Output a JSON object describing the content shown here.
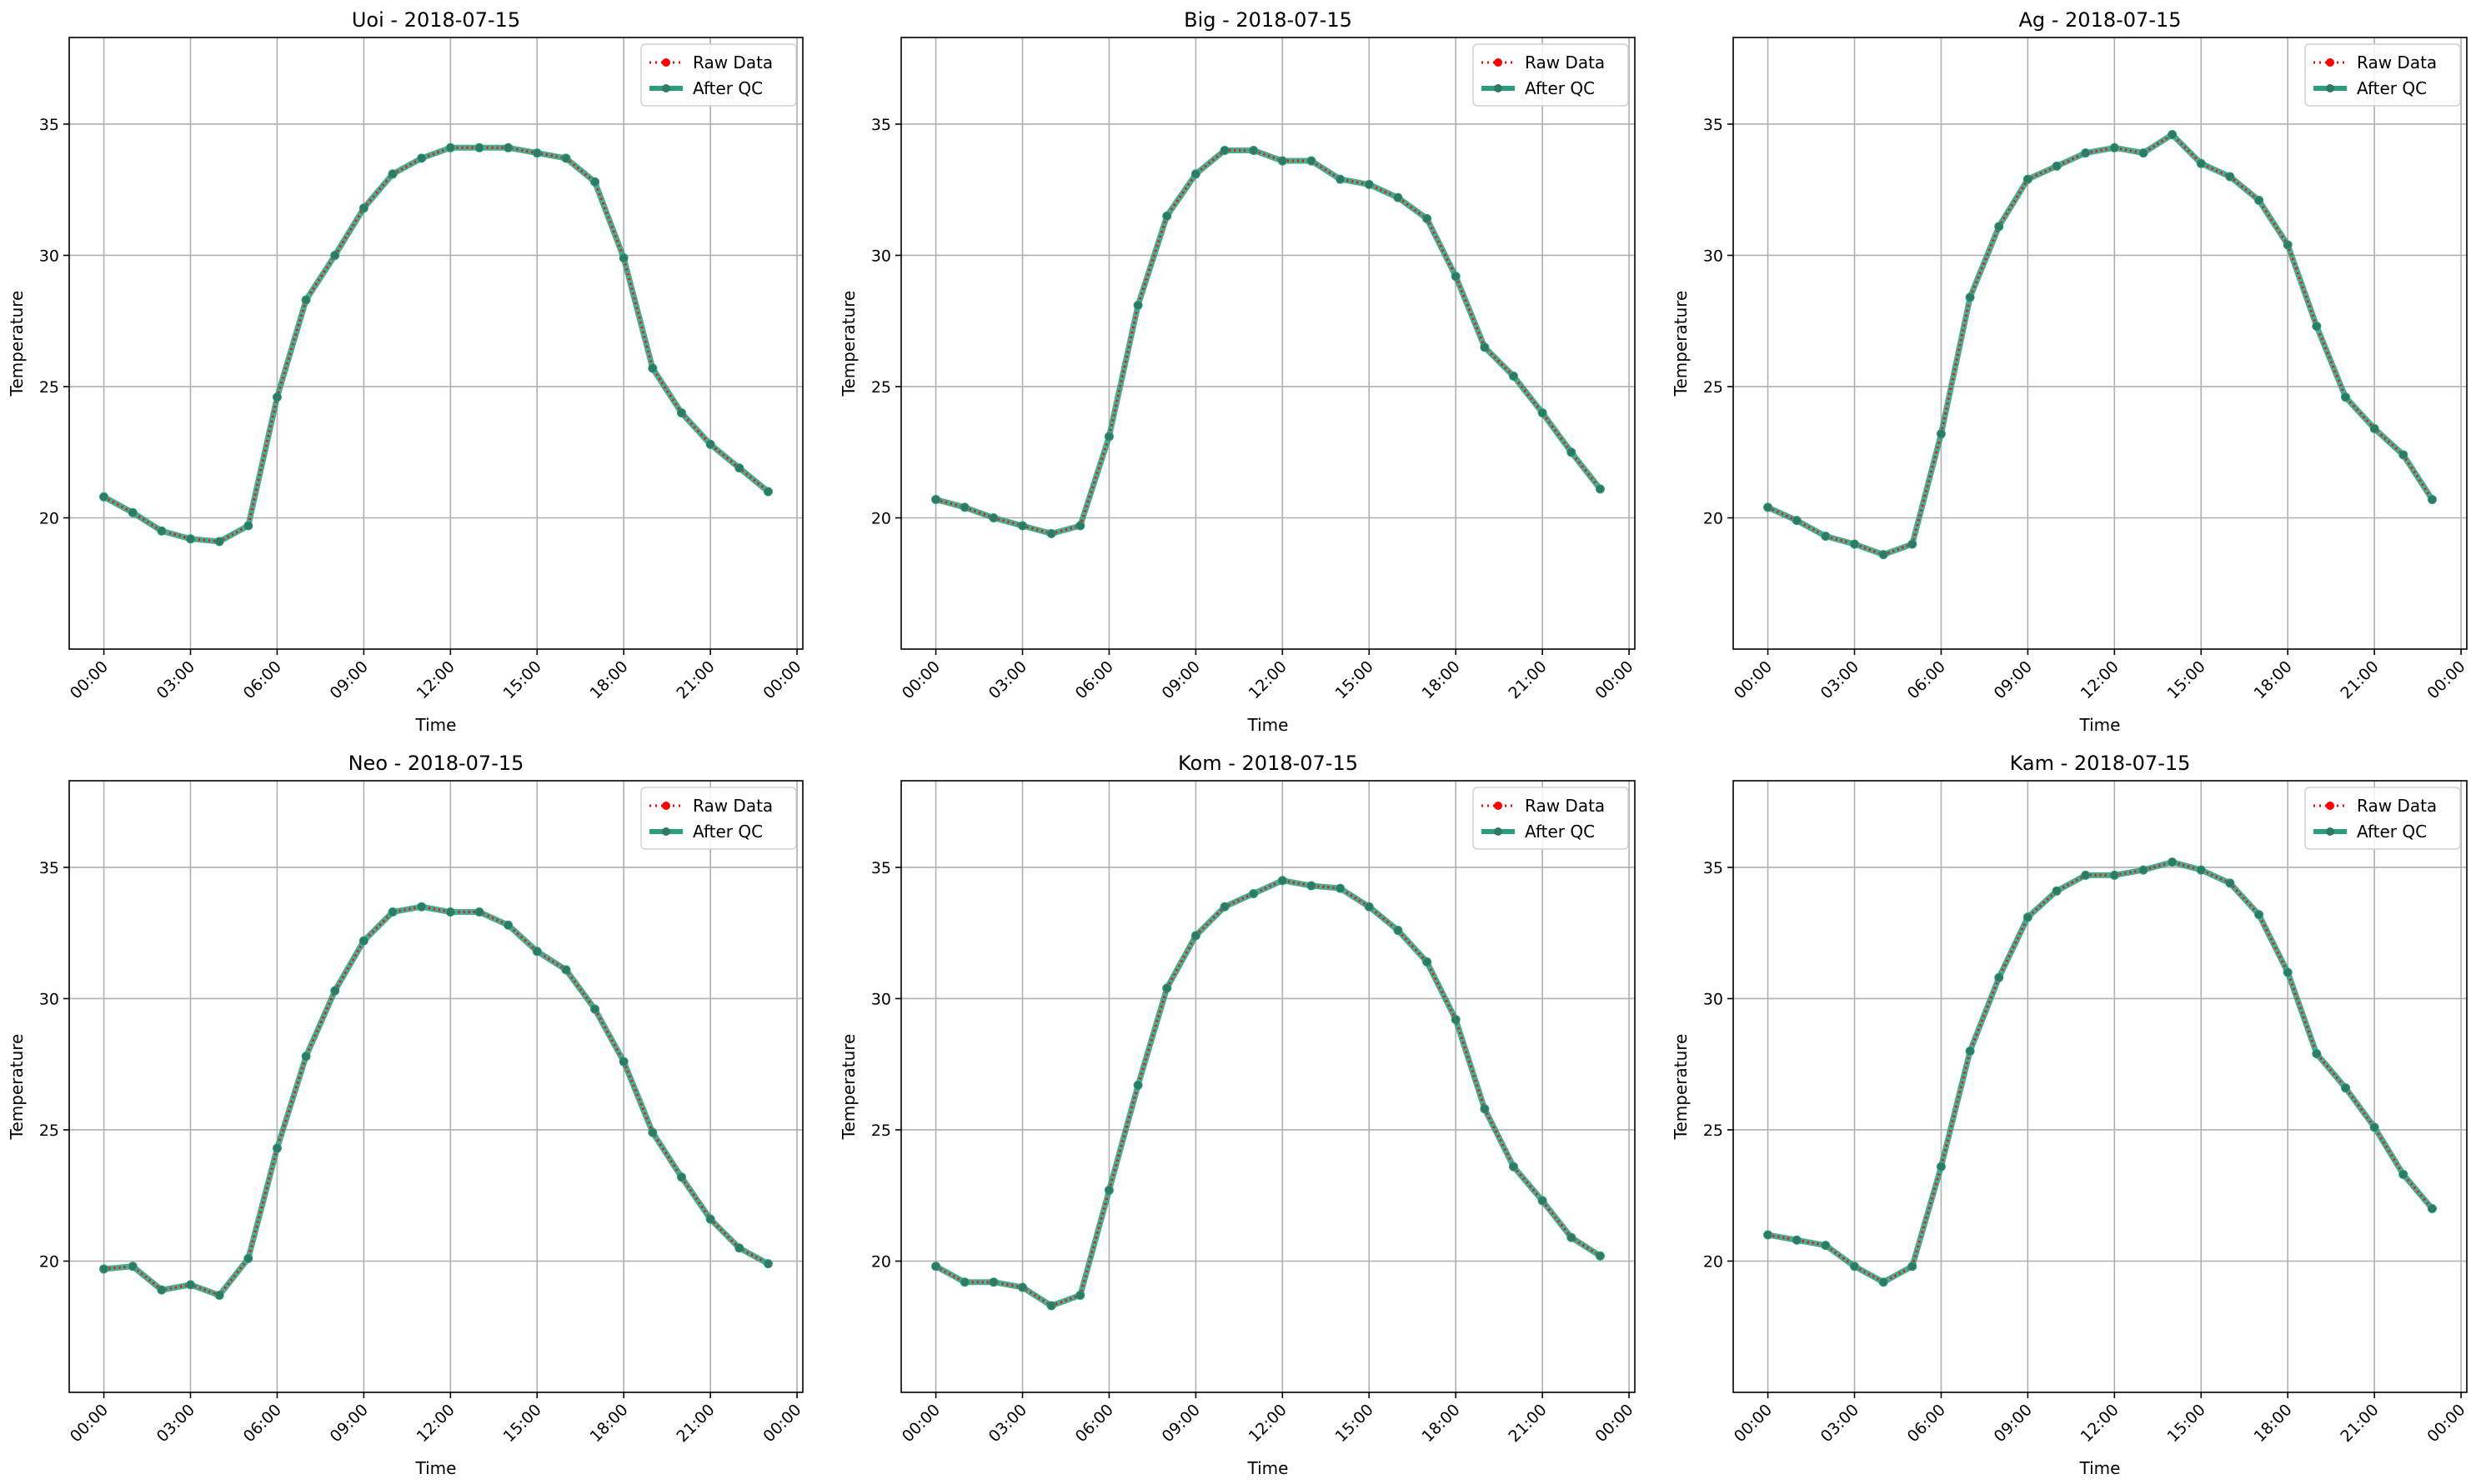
{
  "chart_data": [
    {
      "type": "line",
      "title": "Uoi - 2018-07-15",
      "xlabel": "Time",
      "ylabel": "Temperature",
      "xticks": [
        "00:00",
        "03:00",
        "06:00",
        "09:00",
        "12:00",
        "15:00",
        "18:00",
        "21:00",
        "00:00"
      ],
      "yticks": [
        20,
        25,
        30,
        35
      ],
      "ylim": [
        15,
        38.3
      ],
      "xlim_hours": [
        -1.2,
        24.2
      ],
      "grid": true,
      "legend_position": "top-right",
      "x_hours": [
        0,
        1,
        2,
        3,
        4,
        5,
        6,
        7,
        8,
        9,
        10,
        11,
        12,
        13,
        14,
        15,
        16,
        17,
        18,
        19,
        20,
        21,
        22,
        23
      ],
      "series": [
        {
          "name": "Raw Data",
          "style": "dotted",
          "color": "#ff0000",
          "values": [
            20.8,
            20.2,
            19.5,
            19.2,
            19.1,
            19.7,
            24.6,
            28.3,
            30.0,
            31.8,
            33.1,
            33.7,
            34.1,
            34.1,
            34.1,
            33.9,
            33.7,
            32.8,
            29.9,
            25.7,
            24.0,
            22.8,
            21.9,
            21.0
          ]
        },
        {
          "name": "After QC",
          "style": "solid",
          "color": "#2a9d7c",
          "values": [
            20.8,
            20.2,
            19.5,
            19.2,
            19.1,
            19.7,
            24.6,
            28.3,
            30.0,
            31.8,
            33.1,
            33.7,
            34.1,
            34.1,
            34.1,
            33.9,
            33.7,
            32.8,
            29.9,
            25.7,
            24.0,
            22.8,
            21.9,
            21.0
          ]
        }
      ]
    },
    {
      "type": "line",
      "title": "Big - 2018-07-15",
      "xlabel": "Time",
      "ylabel": "Temperature",
      "xticks": [
        "00:00",
        "03:00",
        "06:00",
        "09:00",
        "12:00",
        "15:00",
        "18:00",
        "21:00",
        "00:00"
      ],
      "yticks": [
        20,
        25,
        30,
        35
      ],
      "ylim": [
        15,
        38.3
      ],
      "xlim_hours": [
        -1.2,
        24.2
      ],
      "grid": true,
      "legend_position": "top-right",
      "x_hours": [
        0,
        1,
        2,
        3,
        4,
        5,
        6,
        7,
        8,
        9,
        10,
        11,
        12,
        13,
        14,
        15,
        16,
        17,
        18,
        19,
        20,
        21,
        22,
        23
      ],
      "series": [
        {
          "name": "Raw Data",
          "style": "dotted",
          "color": "#ff0000",
          "values": [
            20.7,
            20.4,
            20.0,
            19.7,
            19.4,
            19.7,
            23.1,
            28.1,
            31.5,
            33.1,
            34.0,
            34.0,
            33.6,
            33.6,
            32.9,
            32.7,
            32.2,
            31.4,
            29.2,
            26.5,
            25.4,
            24.0,
            22.5,
            21.1
          ]
        },
        {
          "name": "After QC",
          "style": "solid",
          "color": "#2a9d7c",
          "values": [
            20.7,
            20.4,
            20.0,
            19.7,
            19.4,
            19.7,
            23.1,
            28.1,
            31.5,
            33.1,
            34.0,
            34.0,
            33.6,
            33.6,
            32.9,
            32.7,
            32.2,
            31.4,
            29.2,
            26.5,
            25.4,
            24.0,
            22.5,
            21.1
          ]
        }
      ]
    },
    {
      "type": "line",
      "title": "Ag - 2018-07-15",
      "xlabel": "Time",
      "ylabel": "Temperature",
      "xticks": [
        "00:00",
        "03:00",
        "06:00",
        "09:00",
        "12:00",
        "15:00",
        "18:00",
        "21:00",
        "00:00"
      ],
      "yticks": [
        20,
        25,
        30,
        35
      ],
      "ylim": [
        15,
        38.3
      ],
      "xlim_hours": [
        -1.2,
        24.2
      ],
      "grid": true,
      "legend_position": "top-right",
      "x_hours": [
        0,
        1,
        2,
        3,
        4,
        5,
        6,
        7,
        8,
        9,
        10,
        11,
        12,
        13,
        14,
        15,
        16,
        17,
        18,
        19,
        20,
        21,
        22,
        23
      ],
      "series": [
        {
          "name": "Raw Data",
          "style": "dotted",
          "color": "#ff0000",
          "values": [
            20.4,
            19.9,
            19.3,
            19.0,
            18.6,
            19.0,
            23.2,
            28.4,
            31.1,
            32.9,
            33.4,
            33.9,
            34.1,
            33.9,
            34.6,
            33.5,
            33.0,
            32.1,
            30.4,
            27.3,
            24.6,
            23.4,
            22.4,
            20.7
          ]
        },
        {
          "name": "After QC",
          "style": "solid",
          "color": "#2a9d7c",
          "values": [
            20.4,
            19.9,
            19.3,
            19.0,
            18.6,
            19.0,
            23.2,
            28.4,
            31.1,
            32.9,
            33.4,
            33.9,
            34.1,
            33.9,
            34.6,
            33.5,
            33.0,
            32.1,
            30.4,
            27.3,
            24.6,
            23.4,
            22.4,
            20.7
          ]
        }
      ]
    },
    {
      "type": "line",
      "title": "Neo - 2018-07-15",
      "xlabel": "Time",
      "ylabel": "Temperature",
      "xticks": [
        "00:00",
        "03:00",
        "06:00",
        "09:00",
        "12:00",
        "15:00",
        "18:00",
        "21:00",
        "00:00"
      ],
      "yticks": [
        20,
        25,
        30,
        35
      ],
      "ylim": [
        15,
        38.3
      ],
      "xlim_hours": [
        -1.2,
        24.2
      ],
      "grid": true,
      "legend_position": "top-right",
      "x_hours": [
        0,
        1,
        2,
        3,
        4,
        5,
        6,
        7,
        8,
        9,
        10,
        11,
        12,
        13,
        14,
        15,
        16,
        17,
        18,
        19,
        20,
        21,
        22,
        23
      ],
      "series": [
        {
          "name": "Raw Data",
          "style": "dotted",
          "color": "#ff0000",
          "values": [
            19.7,
            19.8,
            18.9,
            19.1,
            18.7,
            20.1,
            24.3,
            27.8,
            30.3,
            32.2,
            33.3,
            33.5,
            33.3,
            33.3,
            32.8,
            31.8,
            31.1,
            29.6,
            27.6,
            24.9,
            23.2,
            21.6,
            20.5,
            19.9
          ]
        },
        {
          "name": "After QC",
          "style": "solid",
          "color": "#2a9d7c",
          "values": [
            19.7,
            19.8,
            18.9,
            19.1,
            18.7,
            20.1,
            24.3,
            27.8,
            30.3,
            32.2,
            33.3,
            33.5,
            33.3,
            33.3,
            32.8,
            31.8,
            31.1,
            29.6,
            27.6,
            24.9,
            23.2,
            21.6,
            20.5,
            19.9
          ]
        }
      ]
    },
    {
      "type": "line",
      "title": "Kom - 2018-07-15",
      "xlabel": "Time",
      "ylabel": "Temperature",
      "xticks": [
        "00:00",
        "03:00",
        "06:00",
        "09:00",
        "12:00",
        "15:00",
        "18:00",
        "21:00",
        "00:00"
      ],
      "yticks": [
        20,
        25,
        30,
        35
      ],
      "ylim": [
        15,
        38.3
      ],
      "xlim_hours": [
        -1.2,
        24.2
      ],
      "grid": true,
      "legend_position": "top-right",
      "x_hours": [
        0,
        1,
        2,
        3,
        4,
        5,
        6,
        7,
        8,
        9,
        10,
        11,
        12,
        13,
        14,
        15,
        16,
        17,
        18,
        19,
        20,
        21,
        22,
        23
      ],
      "series": [
        {
          "name": "Raw Data",
          "style": "dotted",
          "color": "#ff0000",
          "values": [
            19.8,
            19.2,
            19.2,
            19.0,
            18.3,
            18.7,
            22.7,
            26.7,
            30.4,
            32.4,
            33.5,
            34.0,
            34.5,
            34.3,
            34.2,
            33.5,
            32.6,
            31.4,
            29.2,
            25.8,
            23.6,
            22.3,
            20.9,
            20.2
          ]
        },
        {
          "name": "After QC",
          "style": "solid",
          "color": "#2a9d7c",
          "values": [
            19.8,
            19.2,
            19.2,
            19.0,
            18.3,
            18.7,
            22.7,
            26.7,
            30.4,
            32.4,
            33.5,
            34.0,
            34.5,
            34.3,
            34.2,
            33.5,
            32.6,
            31.4,
            29.2,
            25.8,
            23.6,
            22.3,
            20.9,
            20.2
          ]
        }
      ]
    },
    {
      "type": "line",
      "title": "Kam - 2018-07-15",
      "xlabel": "Time",
      "ylabel": "Temperature",
      "xticks": [
        "00:00",
        "03:00",
        "06:00",
        "09:00",
        "12:00",
        "15:00",
        "18:00",
        "21:00",
        "00:00"
      ],
      "yticks": [
        20,
        25,
        30,
        35
      ],
      "ylim": [
        15,
        38.3
      ],
      "xlim_hours": [
        -1.2,
        24.2
      ],
      "grid": true,
      "legend_position": "top-right",
      "x_hours": [
        0,
        1,
        2,
        3,
        4,
        5,
        6,
        7,
        8,
        9,
        10,
        11,
        12,
        13,
        14,
        15,
        16,
        17,
        18,
        19,
        20,
        21,
        22,
        23
      ],
      "series": [
        {
          "name": "Raw Data",
          "style": "dotted",
          "color": "#ff0000",
          "values": [
            21.0,
            20.8,
            20.6,
            19.8,
            19.2,
            19.8,
            23.6,
            28.0,
            30.8,
            33.1,
            34.1,
            34.7,
            34.7,
            34.9,
            35.2,
            34.9,
            34.4,
            33.2,
            31.0,
            27.9,
            26.6,
            25.1,
            23.3,
            22.0
          ]
        },
        {
          "name": "After QC",
          "style": "solid",
          "color": "#2a9d7c",
          "values": [
            21.0,
            20.8,
            20.6,
            19.8,
            19.2,
            19.8,
            23.6,
            28.0,
            30.8,
            33.1,
            34.1,
            34.7,
            34.7,
            34.9,
            35.2,
            34.9,
            34.4,
            33.2,
            31.0,
            27.9,
            26.6,
            25.1,
            23.3,
            22.0
          ]
        }
      ]
    }
  ]
}
